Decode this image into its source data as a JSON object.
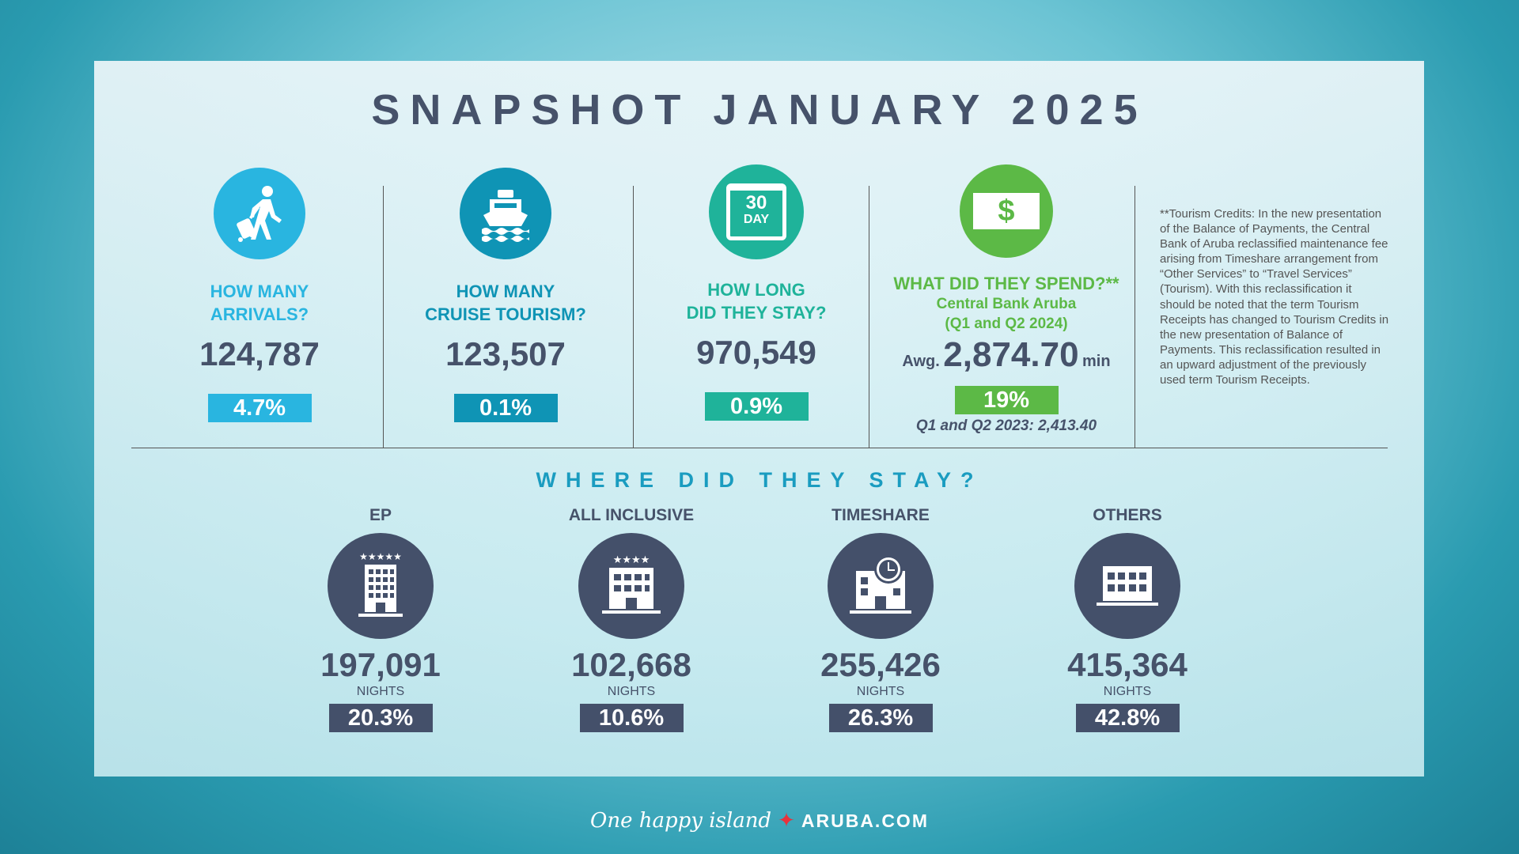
{
  "title": "SNAPSHOT JANUARY 2025",
  "metrics": [
    {
      "q1": "HOW MANY",
      "q2": "ARRIVALS?",
      "value": "124,787",
      "change": "4.7%",
      "color": "#29b5e0",
      "icon": "traveler-luggage-icon"
    },
    {
      "q1": "HOW MANY",
      "q2": "CRUISE TOURISM?",
      "value": "123,507",
      "change": "0.1%",
      "color": "#0f94b5",
      "icon": "cruise-ship-icon"
    },
    {
      "q1": "HOW LONG",
      "q2": "DID THEY STAY?",
      "value": "970,549",
      "change": "0.9%",
      "color": "#1fb39a",
      "icon": "calendar-30-day-icon",
      "icon_text1": "30",
      "icon_text2": "DAY"
    }
  ],
  "spend": {
    "question": "WHAT DID THEY SPEND?**",
    "source": "Central Bank Aruba",
    "period": "(Q1 and Q2 2024)",
    "prefix": "Awg.",
    "value": "2,874.70",
    "suffix": "min",
    "change": "19%",
    "previous": "Q1 and Q2 2023: 2,413.40",
    "color": "#5cb946",
    "icon": "dollar-bill-icon"
  },
  "note": "**Tourism Credits: In the new presentation of the Balance of Payments, the Central Bank of Aruba reclassified maintenance fee arising from Timeshare arrangement from “Other Services” to “Travel Services” (Tourism). With this reclassification it should be noted that the term Tourism Receipts has changed to Tourism Credits in the new presentation of Balance of Payments. This reclassification resulted in an upward adjustment of the previously used term Tourism Receipts.",
  "where": {
    "title": "WHERE DID THEY STAY?",
    "items": [
      {
        "label": "EP",
        "value": "197,091",
        "unit": "NIGHTS",
        "share": "20.3%",
        "icon": "hotel-5-star-icon"
      },
      {
        "label": "ALL INCLUSIVE",
        "value": "102,668",
        "unit": "NIGHTS",
        "share": "10.6%",
        "icon": "hotel-4-star-icon"
      },
      {
        "label": "TIMESHARE",
        "value": "255,426",
        "unit": "NIGHTS",
        "share": "26.3%",
        "icon": "building-clock-icon"
      },
      {
        "label": "OTHERS",
        "value": "415,364",
        "unit": "NIGHTS",
        "share": "42.8%",
        "icon": "building-icon"
      }
    ]
  },
  "footer": {
    "tagline": "One happy island",
    "site": "ARUBA.COM"
  }
}
